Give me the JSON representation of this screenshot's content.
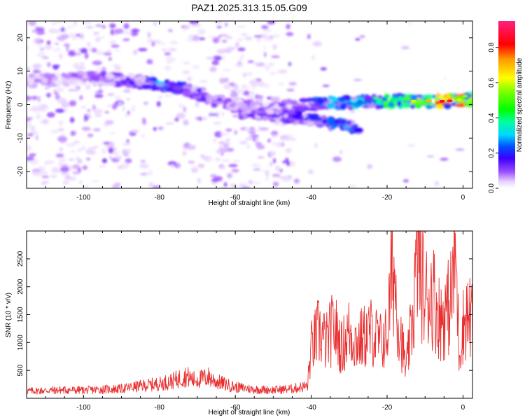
{
  "title": "PAZ1.2025.313.15.05.G09",
  "chart_data": [
    {
      "type": "heatmap",
      "xlabel": "Height of straight line (km)",
      "ylabel": "Frequency (Hz)",
      "xlim": [
        -115,
        2.5
      ],
      "ylim": [
        -25,
        25
      ],
      "xticks": [
        -100,
        -80,
        -60,
        -40,
        -20,
        0
      ],
      "yticks": [
        -20,
        -10,
        0,
        10,
        20
      ],
      "colorbar": {
        "label": "Normalized spectral amplitude",
        "range": [
          0.0,
          0.95
        ],
        "ticks": [
          0.0,
          0.2,
          0.4,
          0.6,
          0.8
        ]
      },
      "ridge": {
        "heights_km": [
          -115,
          -100,
          -90,
          -85,
          -80,
          -75,
          -70,
          -65,
          -60,
          -55,
          -50,
          -45,
          -40,
          -35,
          -30,
          -25,
          -20,
          -15,
          -10,
          -5,
          0,
          2.5
        ],
        "frequency_hz": [
          7,
          8,
          7.5,
          7,
          6,
          5,
          3.5,
          1,
          0,
          -1,
          -1,
          -0.5,
          0,
          0.5,
          0.5,
          0.8,
          1,
          1,
          1,
          1,
          1.5,
          1.8
        ],
        "amplitude": [
          0.06,
          0.08,
          0.12,
          0.15,
          0.25,
          0.2,
          0.14,
          0.1,
          0.08,
          0.08,
          0.1,
          0.12,
          0.2,
          0.25,
          0.3,
          0.3,
          0.45,
          0.55,
          0.6,
          0.75,
          0.7,
          0.6
        ]
      },
      "secondary_band": {
        "heights_km": [
          -60,
          -50,
          -40,
          -35,
          -30,
          -27
        ],
        "frequency_hz": [
          -2,
          -3,
          -4.5,
          -5.5,
          -6.5,
          -8
        ],
        "amplitude": [
          0.1,
          0.12,
          0.18,
          0.22,
          0.25,
          0.15
        ]
      }
    },
    {
      "type": "line",
      "xlabel": "Height of straight line (km)",
      "ylabel": "SNR (10 * v/v)",
      "xlim": [
        -115,
        2.5
      ],
      "ylim": [
        0,
        3000
      ],
      "xticks": [
        -100,
        -80,
        -60,
        -40,
        -20,
        0
      ],
      "yticks": [
        500,
        1000,
        1500,
        2000,
        2500
      ],
      "color": "#e83030",
      "series": [
        {
          "name": "SNR",
          "x": [
            -115,
            -110,
            -105,
            -100,
            -95,
            -90,
            -85,
            -80,
            -76,
            -73,
            -71,
            -69,
            -67,
            -65,
            -60,
            -55,
            -50,
            -45,
            -41,
            -40,
            -38,
            -36,
            -34,
            -32,
            -30,
            -28,
            -26,
            -24,
            -22,
            -20,
            -18.5,
            -17,
            -15,
            -13,
            -12,
            -10,
            -8,
            -6,
            -4,
            -3,
            -2,
            -1,
            0,
            1,
            2.5
          ],
          "y": [
            130,
            140,
            150,
            145,
            160,
            170,
            220,
            260,
            320,
            400,
            330,
            350,
            380,
            300,
            200,
            160,
            150,
            170,
            220,
            900,
            1200,
            1000,
            1300,
            900,
            1200,
            1000,
            1100,
            1200,
            1000,
            1100,
            2450,
            1400,
            500,
            1600,
            2700,
            1800,
            1900,
            1400,
            1600,
            1850,
            2700,
            800,
            1300,
            1500,
            1400
          ]
        }
      ]
    }
  ]
}
